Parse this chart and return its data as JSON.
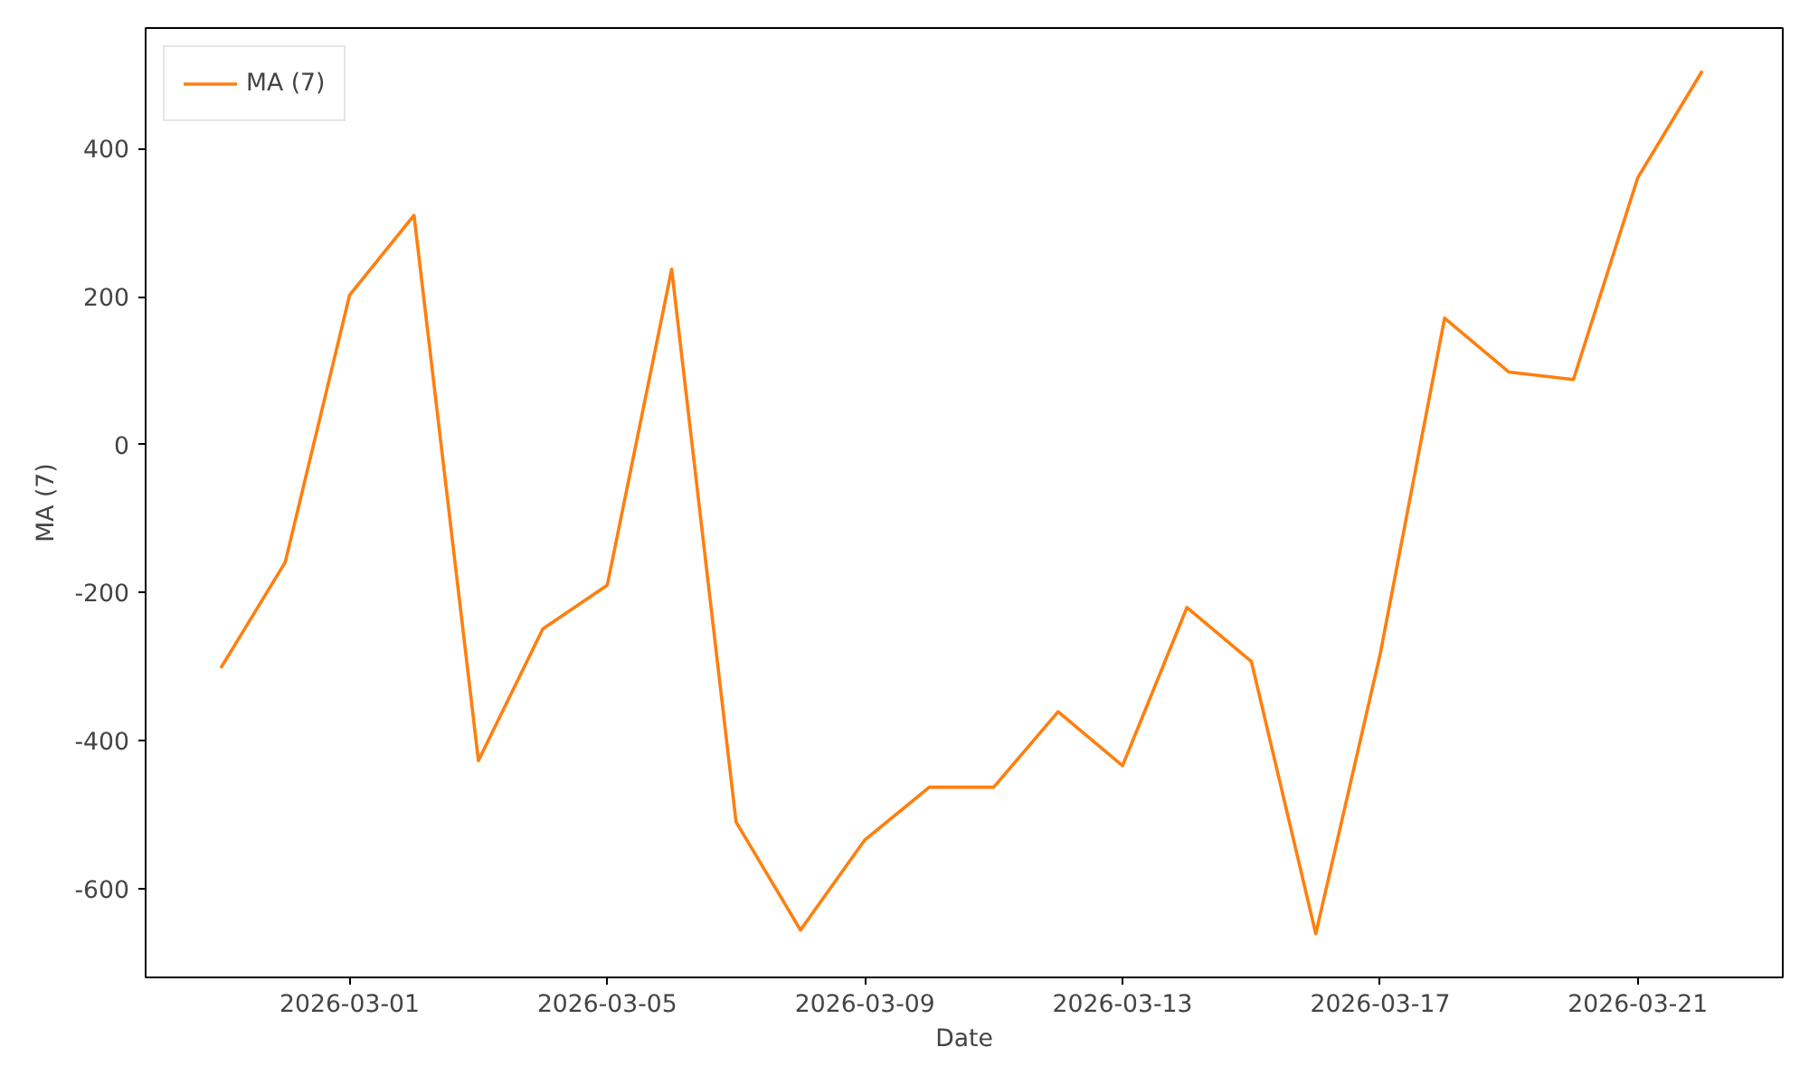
{
  "chart_data": {
    "type": "line",
    "xlabel": "Date",
    "ylabel": "MA (7)",
    "x": [
      "2026-02-27",
      "2026-02-28",
      "2026-03-01",
      "2026-03-02",
      "2026-03-03",
      "2026-03-04",
      "2026-03-05",
      "2026-03-06",
      "2026-03-07",
      "2026-03-08",
      "2026-03-09",
      "2026-03-10",
      "2026-03-11",
      "2026-03-12",
      "2026-03-13",
      "2026-03-14",
      "2026-03-15",
      "2026-03-16",
      "2026-03-17",
      "2026-03-18",
      "2026-03-19",
      "2026-03-20",
      "2026-03-21",
      "2026-03-22"
    ],
    "series": [
      {
        "name": "MA (7)",
        "color": "#ff7f0e",
        "values": [
          -302,
          -159,
          202,
          310,
          -427,
          -249,
          -190,
          237,
          -510,
          -656,
          -534,
          -463,
          -463,
          -361,
          -434,
          -220,
          -293,
          -661,
          -283,
          171,
          98,
          88,
          361,
          505
        ]
      }
    ],
    "xlim": [
      "2026-02-25T20:00",
      "2026-03-23T06:00"
    ],
    "ylim": [
      -720,
      563
    ],
    "xticks": [
      "2026-03-01",
      "2026-03-05",
      "2026-03-09",
      "2026-03-13",
      "2026-03-17",
      "2026-03-21"
    ],
    "yticks": [
      -600,
      -400,
      -200,
      0,
      200,
      400
    ],
    "grid": false,
    "legend": "top left",
    "marker": "none",
    "line_style": "solid"
  }
}
